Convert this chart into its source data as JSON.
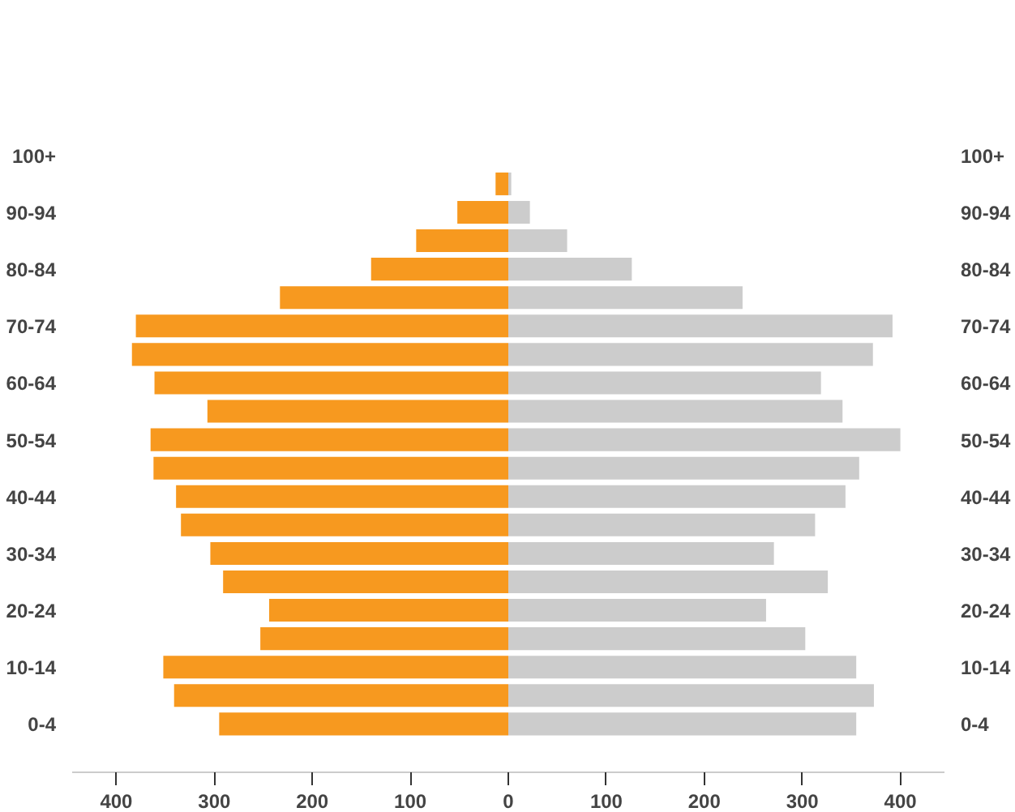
{
  "chart_data": {
    "type": "bar",
    "orientation": "horizontal",
    "categories": [
      "100+",
      null,
      "90-94",
      null,
      "80-84",
      null,
      "70-74",
      null,
      "60-64",
      null,
      "50-54",
      null,
      "40-44",
      null,
      "30-34",
      null,
      "20-24",
      null,
      "10-14",
      null,
      "0-4"
    ],
    "series": [
      {
        "color": "#f7991f",
        "values": [
          0,
          -13,
          -52,
          -94,
          -140,
          -233,
          -380,
          -384,
          -361,
          -307,
          -365,
          -362,
          -339,
          -334,
          -304,
          -291,
          -244,
          -253,
          -352,
          -341,
          -295
        ]
      },
      {
        "color": "#cccccc",
        "values": [
          0,
          3,
          22,
          60,
          126,
          239,
          392,
          372,
          319,
          341,
          400,
          358,
          344,
          313,
          271,
          326,
          263,
          303,
          355,
          373,
          355
        ]
      }
    ],
    "xlim": [
      -445,
      445
    ],
    "xticks": [
      {
        "value": -400,
        "label": "400"
      },
      {
        "value": -300,
        "label": "300"
      },
      {
        "value": -200,
        "label": "200"
      },
      {
        "value": -100,
        "label": "100"
      },
      0,
      100,
      200,
      300,
      400
    ],
    "stacked": true,
    "grid": false
  }
}
